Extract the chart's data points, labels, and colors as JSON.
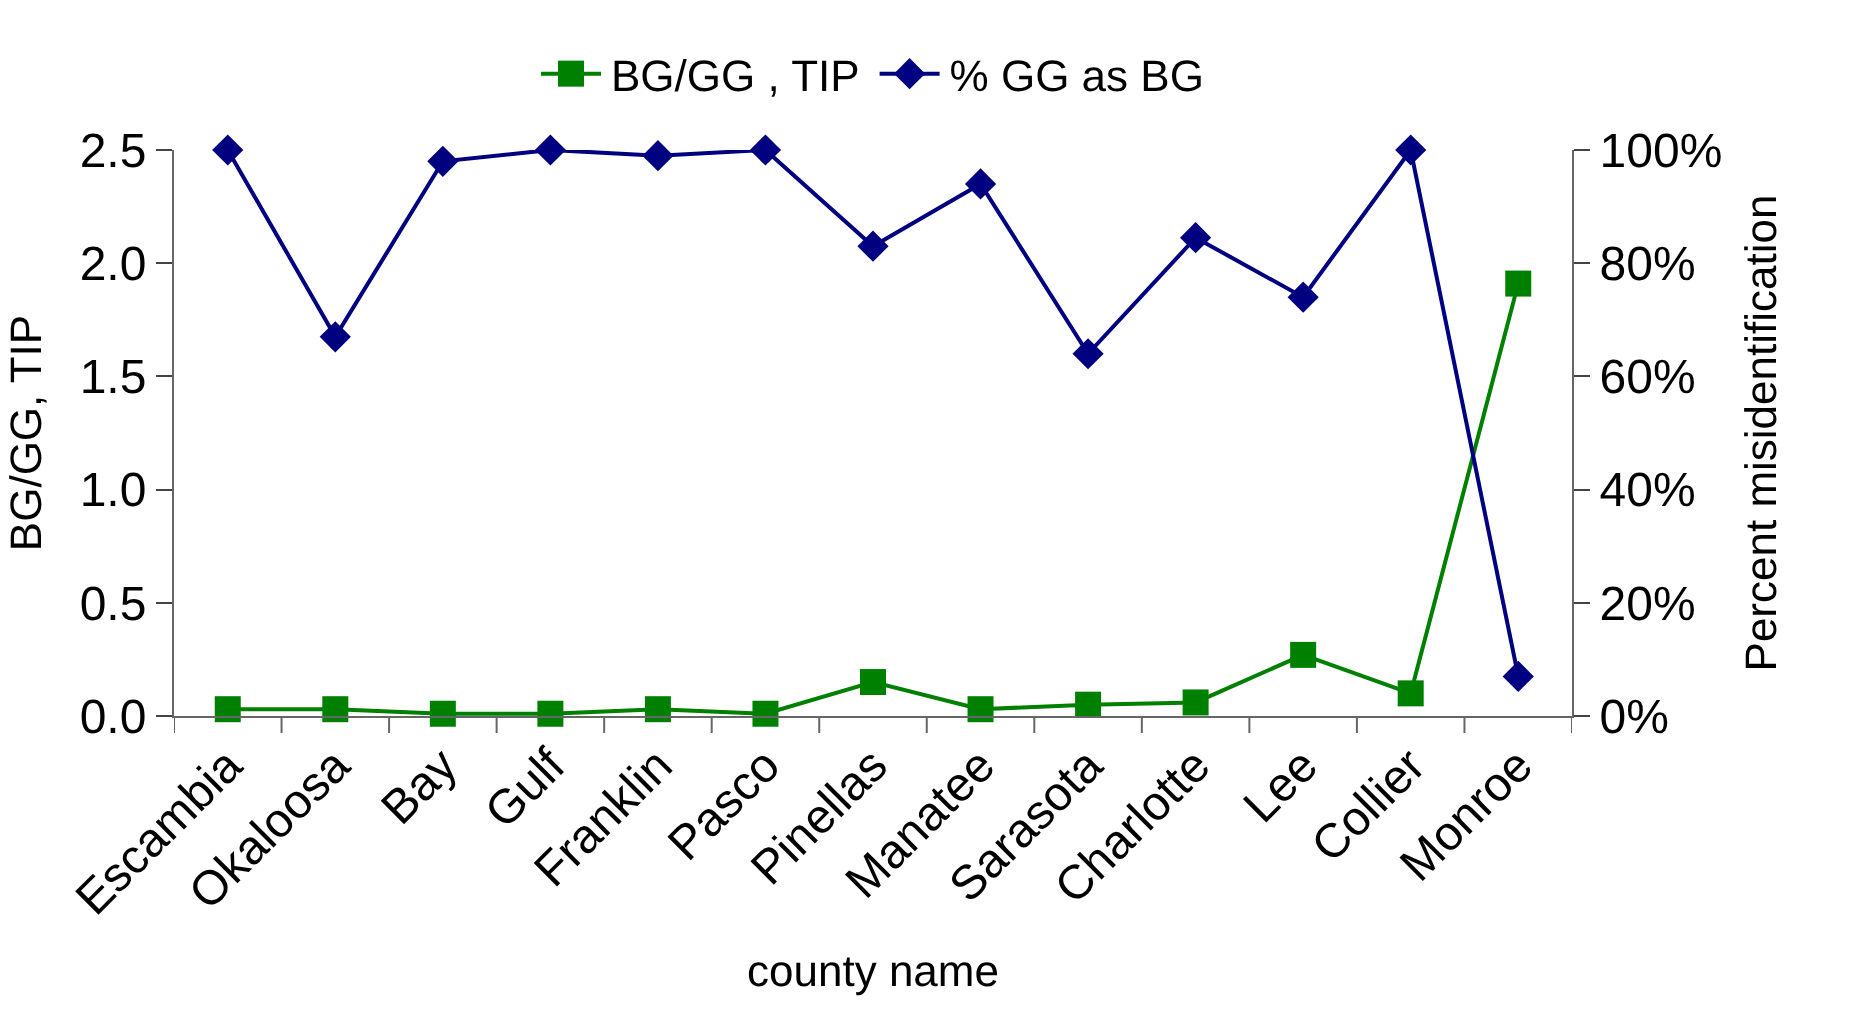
{
  "chart_data": {
    "type": "line",
    "xlabel": "county name",
    "ylabel": "BG/GG, TIP",
    "y2label": "Percent misidentification",
    "categories": [
      "Escambia",
      "Okaloosa",
      "Bay",
      "Gulf",
      "Franklin",
      "Pasco",
      "Pinellas",
      "Manatee",
      "Sarasota",
      "Charlotte",
      "Lee",
      "Collier",
      "Monroe"
    ],
    "series": [
      {
        "name": "BG/GG , TIP",
        "color": "#008000",
        "marker": "square",
        "values": [
          0.03,
          0.03,
          0.01,
          0.01,
          0.03,
          0.01,
          0.15,
          0.03,
          0.05,
          0.06,
          0.27,
          0.1,
          1.91
        ]
      },
      {
        "name": "% GG as BG",
        "color": "#000080",
        "marker": "diamond",
        "axis": "y2",
        "values": [
          100,
          67,
          98,
          100,
          99,
          100,
          83,
          94,
          64,
          84.5,
          74,
          100,
          7
        ]
      }
    ],
    "ylim": [
      0,
      2.5
    ],
    "yticks": [
      {
        "value": 0,
        "label": "0.0"
      },
      0.5,
      {
        "value": 1,
        "label": "1.0"
      },
      1.5,
      {
        "value": 2,
        "label": "2.0"
      },
      2.5
    ],
    "y2lim": [
      0,
      100
    ],
    "y2ticks": [
      {
        "value": 0,
        "label": "0%"
      },
      {
        "value": 20,
        "label": "20%"
      },
      {
        "value": 40,
        "label": "40%"
      },
      {
        "value": 60,
        "label": "60%"
      },
      {
        "value": 80,
        "label": "80%"
      },
      {
        "value": 100,
        "label": "100%"
      }
    ],
    "legend": "top"
  }
}
